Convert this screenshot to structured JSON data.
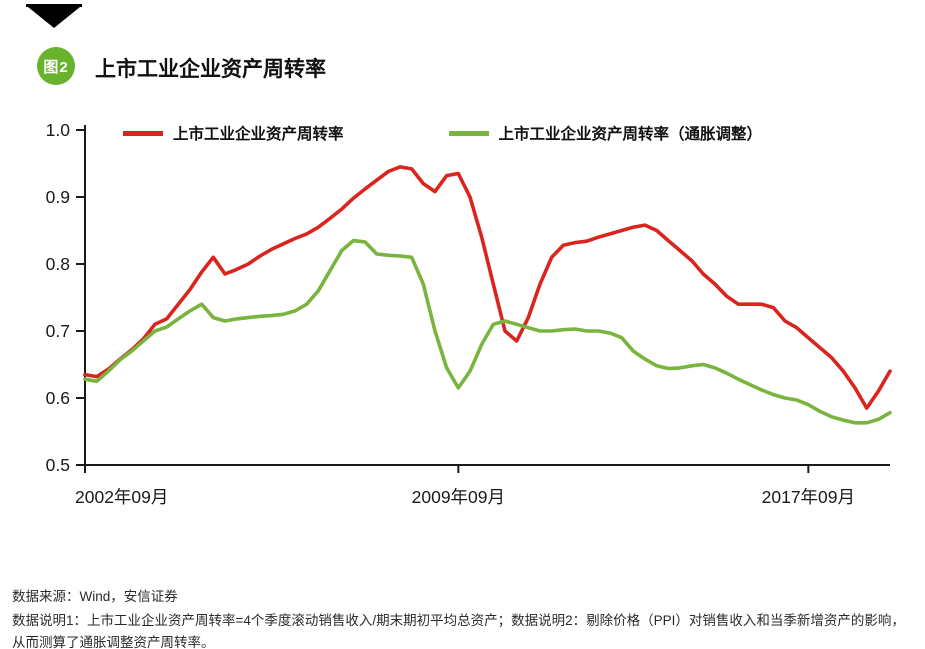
{
  "header": {
    "badge": "图2",
    "title": "上市工业企业资产周转率"
  },
  "footer": {
    "source": "数据来源：Wind，安信证券",
    "notes": "数据说明1：上市工业企业资产周转率=4个季度滚动销售收入/期末期初平均总资产；数据说明2：剔除价格（PPI）对销售收入和当季新增资产的影响，从而测算了通胀调整资产周转率。"
  },
  "colors": {
    "red": "#d9251d",
    "green": "#78b43e",
    "badge_green": "#69b32c",
    "axis": "#1a1a1a",
    "text": "#2b2b2b"
  },
  "chart_data": {
    "type": "line",
    "title": "上市工业企业资产周转率",
    "xlabel": "",
    "ylabel": "",
    "ylim": [
      0.5,
      1.0
    ],
    "y_ticks": [
      1.0,
      0.9,
      0.8,
      0.7,
      0.6,
      0.5
    ],
    "x_ticks": [
      {
        "index": 0,
        "label": "2002年09月"
      },
      {
        "index": 32,
        "label": "2009年09月"
      },
      {
        "index": 62,
        "label": "2017年09月"
      }
    ],
    "x_frequency": "quarterly",
    "grid": false,
    "legend_position": "top",
    "series": [
      {
        "name": "上市工业企业资产周转率",
        "color": "#d9251d",
        "values": [
          0.635,
          0.632,
          0.643,
          0.658,
          0.672,
          0.688,
          0.71,
          0.718,
          0.74,
          0.762,
          0.788,
          0.81,
          0.785,
          0.792,
          0.8,
          0.812,
          0.822,
          0.83,
          0.838,
          0.845,
          0.855,
          0.868,
          0.882,
          0.898,
          0.912,
          0.925,
          0.938,
          0.945,
          0.942,
          0.92,
          0.908,
          0.932,
          0.935,
          0.9,
          0.84,
          0.77,
          0.7,
          0.685,
          0.72,
          0.77,
          0.81,
          0.828,
          0.832,
          0.834,
          0.84,
          0.845,
          0.85,
          0.855,
          0.858,
          0.85,
          0.835,
          0.82,
          0.805,
          0.785,
          0.77,
          0.752,
          0.74,
          0.74,
          0.74,
          0.735,
          0.715,
          0.705,
          0.69,
          0.675,
          0.66,
          0.64,
          0.615,
          0.585,
          0.61,
          0.64
        ]
      },
      {
        "name": "上市工业企业资产周转率（通胀调整）",
        "color": "#78b43e",
        "values": [
          0.628,
          0.625,
          0.64,
          0.657,
          0.67,
          0.685,
          0.7,
          0.706,
          0.718,
          0.73,
          0.74,
          0.72,
          0.715,
          0.718,
          0.72,
          0.722,
          0.723,
          0.725,
          0.73,
          0.74,
          0.76,
          0.79,
          0.82,
          0.835,
          0.833,
          0.815,
          0.813,
          0.812,
          0.81,
          0.77,
          0.7,
          0.645,
          0.615,
          0.64,
          0.68,
          0.71,
          0.715,
          0.71,
          0.705,
          0.7,
          0.7,
          0.702,
          0.703,
          0.7,
          0.7,
          0.697,
          0.69,
          0.67,
          0.658,
          0.648,
          0.644,
          0.645,
          0.648,
          0.65,
          0.645,
          0.637,
          0.628,
          0.62,
          0.612,
          0.605,
          0.6,
          0.597,
          0.59,
          0.58,
          0.572,
          0.567,
          0.563,
          0.563,
          0.568,
          0.578
        ]
      }
    ]
  }
}
